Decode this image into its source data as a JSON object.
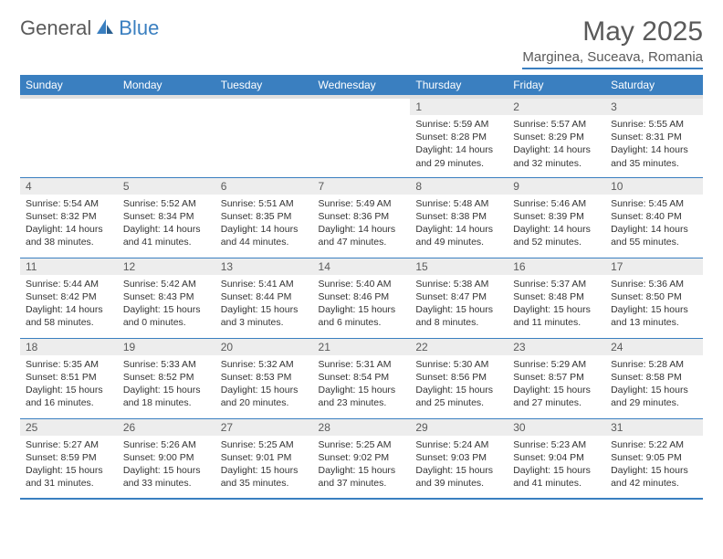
{
  "logo": {
    "general": "General",
    "blue": "Blue"
  },
  "title": "May 2025",
  "location": "Marginea, Suceava, Romania",
  "colors": {
    "accent": "#3a7fc0",
    "header_text": "#ffffff",
    "daynum_bg": "#ededed",
    "text": "#333333",
    "muted": "#5a5a5a",
    "bg": "#ffffff"
  },
  "weekdays": [
    "Sunday",
    "Monday",
    "Tuesday",
    "Wednesday",
    "Thursday",
    "Friday",
    "Saturday"
  ],
  "weeks": [
    [
      null,
      null,
      null,
      null,
      {
        "n": "1",
        "sunrise": "Sunrise: 5:59 AM",
        "sunset": "Sunset: 8:28 PM",
        "day1": "Daylight: 14 hours",
        "day2": "and 29 minutes."
      },
      {
        "n": "2",
        "sunrise": "Sunrise: 5:57 AM",
        "sunset": "Sunset: 8:29 PM",
        "day1": "Daylight: 14 hours",
        "day2": "and 32 minutes."
      },
      {
        "n": "3",
        "sunrise": "Sunrise: 5:55 AM",
        "sunset": "Sunset: 8:31 PM",
        "day1": "Daylight: 14 hours",
        "day2": "and 35 minutes."
      }
    ],
    [
      {
        "n": "4",
        "sunrise": "Sunrise: 5:54 AM",
        "sunset": "Sunset: 8:32 PM",
        "day1": "Daylight: 14 hours",
        "day2": "and 38 minutes."
      },
      {
        "n": "5",
        "sunrise": "Sunrise: 5:52 AM",
        "sunset": "Sunset: 8:34 PM",
        "day1": "Daylight: 14 hours",
        "day2": "and 41 minutes."
      },
      {
        "n": "6",
        "sunrise": "Sunrise: 5:51 AM",
        "sunset": "Sunset: 8:35 PM",
        "day1": "Daylight: 14 hours",
        "day2": "and 44 minutes."
      },
      {
        "n": "7",
        "sunrise": "Sunrise: 5:49 AM",
        "sunset": "Sunset: 8:36 PM",
        "day1": "Daylight: 14 hours",
        "day2": "and 47 minutes."
      },
      {
        "n": "8",
        "sunrise": "Sunrise: 5:48 AM",
        "sunset": "Sunset: 8:38 PM",
        "day1": "Daylight: 14 hours",
        "day2": "and 49 minutes."
      },
      {
        "n": "9",
        "sunrise": "Sunrise: 5:46 AM",
        "sunset": "Sunset: 8:39 PM",
        "day1": "Daylight: 14 hours",
        "day2": "and 52 minutes."
      },
      {
        "n": "10",
        "sunrise": "Sunrise: 5:45 AM",
        "sunset": "Sunset: 8:40 PM",
        "day1": "Daylight: 14 hours",
        "day2": "and 55 minutes."
      }
    ],
    [
      {
        "n": "11",
        "sunrise": "Sunrise: 5:44 AM",
        "sunset": "Sunset: 8:42 PM",
        "day1": "Daylight: 14 hours",
        "day2": "and 58 minutes."
      },
      {
        "n": "12",
        "sunrise": "Sunrise: 5:42 AM",
        "sunset": "Sunset: 8:43 PM",
        "day1": "Daylight: 15 hours",
        "day2": "and 0 minutes."
      },
      {
        "n": "13",
        "sunrise": "Sunrise: 5:41 AM",
        "sunset": "Sunset: 8:44 PM",
        "day1": "Daylight: 15 hours",
        "day2": "and 3 minutes."
      },
      {
        "n": "14",
        "sunrise": "Sunrise: 5:40 AM",
        "sunset": "Sunset: 8:46 PM",
        "day1": "Daylight: 15 hours",
        "day2": "and 6 minutes."
      },
      {
        "n": "15",
        "sunrise": "Sunrise: 5:38 AM",
        "sunset": "Sunset: 8:47 PM",
        "day1": "Daylight: 15 hours",
        "day2": "and 8 minutes."
      },
      {
        "n": "16",
        "sunrise": "Sunrise: 5:37 AM",
        "sunset": "Sunset: 8:48 PM",
        "day1": "Daylight: 15 hours",
        "day2": "and 11 minutes."
      },
      {
        "n": "17",
        "sunrise": "Sunrise: 5:36 AM",
        "sunset": "Sunset: 8:50 PM",
        "day1": "Daylight: 15 hours",
        "day2": "and 13 minutes."
      }
    ],
    [
      {
        "n": "18",
        "sunrise": "Sunrise: 5:35 AM",
        "sunset": "Sunset: 8:51 PM",
        "day1": "Daylight: 15 hours",
        "day2": "and 16 minutes."
      },
      {
        "n": "19",
        "sunrise": "Sunrise: 5:33 AM",
        "sunset": "Sunset: 8:52 PM",
        "day1": "Daylight: 15 hours",
        "day2": "and 18 minutes."
      },
      {
        "n": "20",
        "sunrise": "Sunrise: 5:32 AM",
        "sunset": "Sunset: 8:53 PM",
        "day1": "Daylight: 15 hours",
        "day2": "and 20 minutes."
      },
      {
        "n": "21",
        "sunrise": "Sunrise: 5:31 AM",
        "sunset": "Sunset: 8:54 PM",
        "day1": "Daylight: 15 hours",
        "day2": "and 23 minutes."
      },
      {
        "n": "22",
        "sunrise": "Sunrise: 5:30 AM",
        "sunset": "Sunset: 8:56 PM",
        "day1": "Daylight: 15 hours",
        "day2": "and 25 minutes."
      },
      {
        "n": "23",
        "sunrise": "Sunrise: 5:29 AM",
        "sunset": "Sunset: 8:57 PM",
        "day1": "Daylight: 15 hours",
        "day2": "and 27 minutes."
      },
      {
        "n": "24",
        "sunrise": "Sunrise: 5:28 AM",
        "sunset": "Sunset: 8:58 PM",
        "day1": "Daylight: 15 hours",
        "day2": "and 29 minutes."
      }
    ],
    [
      {
        "n": "25",
        "sunrise": "Sunrise: 5:27 AM",
        "sunset": "Sunset: 8:59 PM",
        "day1": "Daylight: 15 hours",
        "day2": "and 31 minutes."
      },
      {
        "n": "26",
        "sunrise": "Sunrise: 5:26 AM",
        "sunset": "Sunset: 9:00 PM",
        "day1": "Daylight: 15 hours",
        "day2": "and 33 minutes."
      },
      {
        "n": "27",
        "sunrise": "Sunrise: 5:25 AM",
        "sunset": "Sunset: 9:01 PM",
        "day1": "Daylight: 15 hours",
        "day2": "and 35 minutes."
      },
      {
        "n": "28",
        "sunrise": "Sunrise: 5:25 AM",
        "sunset": "Sunset: 9:02 PM",
        "day1": "Daylight: 15 hours",
        "day2": "and 37 minutes."
      },
      {
        "n": "29",
        "sunrise": "Sunrise: 5:24 AM",
        "sunset": "Sunset: 9:03 PM",
        "day1": "Daylight: 15 hours",
        "day2": "and 39 minutes."
      },
      {
        "n": "30",
        "sunrise": "Sunrise: 5:23 AM",
        "sunset": "Sunset: 9:04 PM",
        "day1": "Daylight: 15 hours",
        "day2": "and 41 minutes."
      },
      {
        "n": "31",
        "sunrise": "Sunrise: 5:22 AM",
        "sunset": "Sunset: 9:05 PM",
        "day1": "Daylight: 15 hours",
        "day2": "and 42 minutes."
      }
    ]
  ]
}
